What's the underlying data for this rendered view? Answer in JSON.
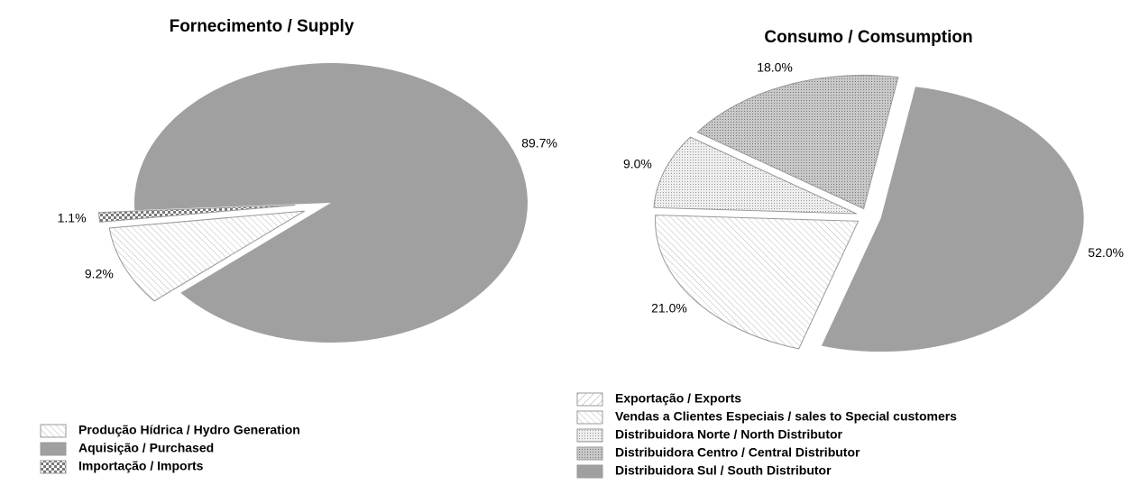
{
  "chart_data": [
    {
      "type": "pie",
      "title": "Fornecimento / Supply",
      "categories": [
        "Produção Hídrica / Hydro Generation",
        "Aquisição / Purchased",
        "Importação / Imports"
      ],
      "values": [
        9.2,
        89.7,
        1.1
      ],
      "value_labels": [
        "9.2%",
        "89.7%",
        "1.1%"
      ]
    },
    {
      "type": "pie",
      "title": "Consumo / Comsumption",
      "categories": [
        "Exportação / Exports",
        "Vendas a Clientes Especiais / sales to Special customers",
        "Distribuidora Norte / North Distributor",
        "Distribuidora Centro / Central Distributor",
        "Distribuidora Sul / South Distributor"
      ],
      "values": [
        0,
        21.0,
        9.0,
        18.0,
        52.0
      ],
      "value_labels": [
        null,
        "21.0%",
        "9.0%",
        "18.0%",
        "52.0%"
      ]
    }
  ]
}
